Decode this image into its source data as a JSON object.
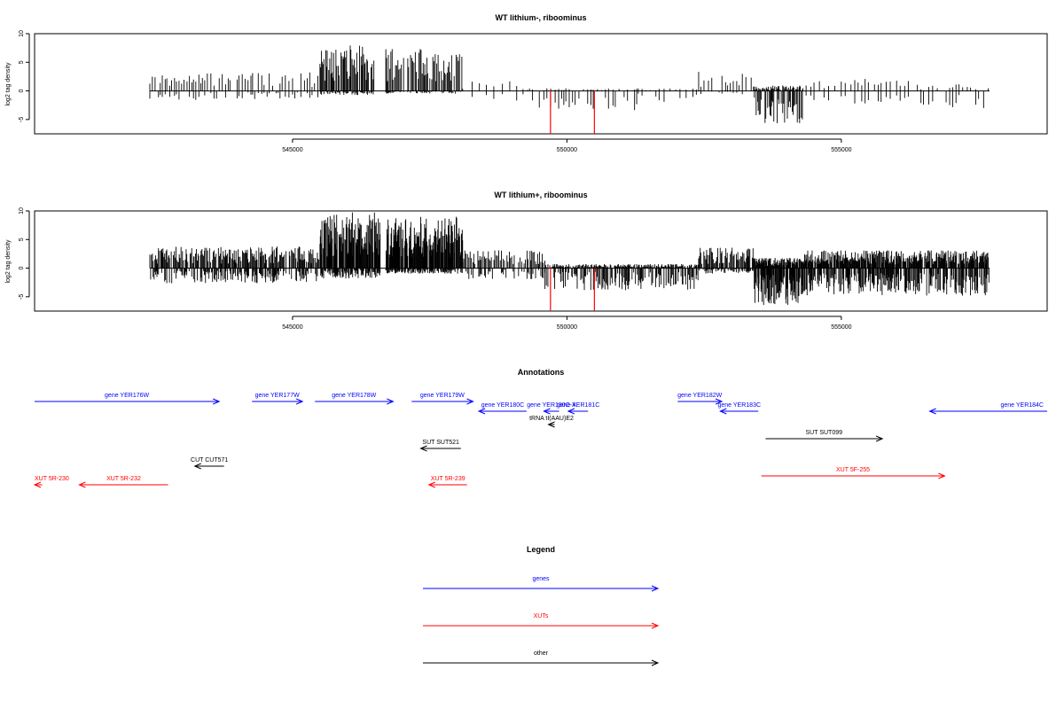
{
  "colors": {
    "gene": "#0000ff",
    "xut": "#ff0000",
    "other": "#000000",
    "highlight": "#ff0000",
    "bar": "#000000"
  },
  "chart_data": [
    {
      "type": "bar",
      "title": "WT lithium-, riboominus",
      "ylabel": "log2 tag density",
      "xlim": [
        540300,
        558750
      ],
      "ylim": [
        -7.5,
        10
      ],
      "yticks": [
        -5,
        0,
        5,
        10
      ],
      "ytick_labels": [
        "-5",
        "0",
        "5",
        "10"
      ],
      "xticks": [
        545000,
        550000,
        555000
      ],
      "xtick_labels": [
        "545000",
        "550000",
        "555000"
      ],
      "grid": false,
      "highlight_bars": [
        {
          "x": 549700,
          "y": -7.5
        },
        {
          "x": 550500,
          "y": -7.5
        }
      ],
      "segments": [
        {
          "start": 542400,
          "end": 543400,
          "plus": 2.5,
          "minus": 1.5,
          "step": 45
        },
        {
          "start": 543400,
          "end": 545500,
          "plus": 2.8,
          "minus": 1.2,
          "step": 50
        },
        {
          "start": 545500,
          "end": 546500,
          "plus": 7.0,
          "minus": 0.6,
          "step": 16
        },
        {
          "start": 546700,
          "end": 548100,
          "plus": 6.2,
          "minus": 0.4,
          "step": 18
        },
        {
          "start": 548100,
          "end": 549200,
          "plus": 1.5,
          "minus": 2.0,
          "step": 130
        },
        {
          "start": 549200,
          "end": 551300,
          "plus": 0.4,
          "minus": 2.8,
          "step": 60
        },
        {
          "start": 551300,
          "end": 552400,
          "plus": 0.4,
          "minus": 1.6,
          "step": 90
        },
        {
          "start": 552400,
          "end": 553400,
          "plus": 2.8,
          "minus": 0.5,
          "step": 60
        },
        {
          "start": 553400,
          "end": 554300,
          "plus": 0.8,
          "minus": 5.0,
          "step": 16
        },
        {
          "start": 554300,
          "end": 556300,
          "plus": 1.8,
          "minus": 2.0,
          "step": 85
        },
        {
          "start": 556300,
          "end": 557700,
          "plus": 1.0,
          "minus": 2.6,
          "step": 70
        }
      ]
    },
    {
      "type": "bar",
      "title": "WT lithium+, riboominus",
      "ylabel": "log2 tag density",
      "xlim": [
        540300,
        558750
      ],
      "ylim": [
        -7.5,
        10
      ],
      "yticks": [
        -5,
        0,
        5,
        10
      ],
      "ytick_labels": [
        "-5",
        "0",
        "5",
        "10"
      ],
      "xticks": [
        545000,
        550000,
        555000
      ],
      "xtick_labels": [
        "545000",
        "550000",
        "555000"
      ],
      "grid": false,
      "highlight_bars": [
        {
          "x": 549700,
          "y": -7.5
        },
        {
          "x": 550500,
          "y": -7.5
        }
      ],
      "segments": [
        {
          "start": 542400,
          "end": 545500,
          "plus": 3.2,
          "minus": 2.2,
          "step": 14
        },
        {
          "start": 545500,
          "end": 546600,
          "plus": 8.2,
          "minus": 1.5,
          "step": 8
        },
        {
          "start": 546700,
          "end": 548100,
          "plus": 7.5,
          "minus": 0.8,
          "step": 8
        },
        {
          "start": 548100,
          "end": 549600,
          "plus": 2.6,
          "minus": 1.6,
          "step": 22
        },
        {
          "start": 549600,
          "end": 552400,
          "plus": 0.6,
          "minus": 3.2,
          "step": 14
        },
        {
          "start": 552400,
          "end": 553400,
          "plus": 3.0,
          "minus": 0.8,
          "step": 16
        },
        {
          "start": 553400,
          "end": 554300,
          "plus": 1.5,
          "minus": 5.4,
          "step": 6
        },
        {
          "start": 554300,
          "end": 557700,
          "plus": 2.6,
          "minus": 4.0,
          "step": 10
        }
      ]
    }
  ],
  "annotations": {
    "title": "Annotations",
    "features": [
      {
        "label": "gene YER176W",
        "kind": "gene",
        "strand": "+",
        "start": 540300,
        "end": 546370,
        "row": 0
      },
      {
        "label": "gene YER177W",
        "kind": "gene",
        "strand": "+",
        "start": 547450,
        "end": 549110,
        "row": 0
      },
      {
        "label": "gene YER178W",
        "kind": "gene",
        "strand": "+",
        "start": 549520,
        "end": 552090,
        "row": 0
      },
      {
        "label": "gene YER179W",
        "kind": "gene",
        "strand": "+",
        "start": 552700,
        "end": 554720,
        "row": 0
      },
      {
        "label": "gene YER180C",
        "kind": "gene",
        "strand": "-",
        "start": 554910,
        "end": 556480,
        "row": 1
      },
      {
        "label": "gene YER180C-A",
        "kind": "gene",
        "strand": "-",
        "start": 557050,
        "end": 557550,
        "row": 1
      },
      {
        "label": "gene YER181C",
        "kind": "gene",
        "strand": "-",
        "start": 557850,
        "end": 558500,
        "row": 1
      },
      {
        "label": "gene YER182W",
        "kind": "gene",
        "strand": "+",
        "start": 561450,
        "end": 562900,
        "row": 0
      },
      {
        "label": "gene YER183C",
        "kind": "gene",
        "strand": "-",
        "start": 562850,
        "end": 564100,
        "row": 1
      },
      {
        "label": "gene YER184C",
        "kind": "gene",
        "strand": "-",
        "start": 569740,
        "end": 573600,
        "row": 1
      },
      {
        "label": "tRNA tI(AAU)E2",
        "kind": "other",
        "strand": "-",
        "start": 557200,
        "end": 557400,
        "row": 2
      },
      {
        "label": "SUT SUT521",
        "kind": "other",
        "strand": "-",
        "start": 553000,
        "end": 554320,
        "row": 3
      },
      {
        "label": "SUT SUT099",
        "kind": "other",
        "strand": "+",
        "start": 564340,
        "end": 568180,
        "row": 4
      },
      {
        "label": "CUT CUT571",
        "kind": "other",
        "strand": "-",
        "start": 545570,
        "end": 546530,
        "row": 5
      },
      {
        "label": "XUT 5R-230",
        "kind": "xut",
        "strand": "-",
        "start": 540300,
        "end": 540550,
        "row": 6
      },
      {
        "label": "XUT 5R-232",
        "kind": "xut",
        "strand": "-",
        "start": 541770,
        "end": 544690,
        "row": 6
      },
      {
        "label": "XUT 5R-239",
        "kind": "xut",
        "strand": "-",
        "start": 553270,
        "end": 554520,
        "row": 6
      },
      {
        "label": "XUT 5F-255",
        "kind": "xut",
        "strand": "+",
        "start": 564200,
        "end": 570230,
        "row": 7
      }
    ]
  },
  "legend": {
    "title": "Legend",
    "items": [
      {
        "label": "genes",
        "kind": "gene"
      },
      {
        "label": "XUTs",
        "kind": "xut"
      },
      {
        "label": "other",
        "kind": "other"
      }
    ]
  }
}
